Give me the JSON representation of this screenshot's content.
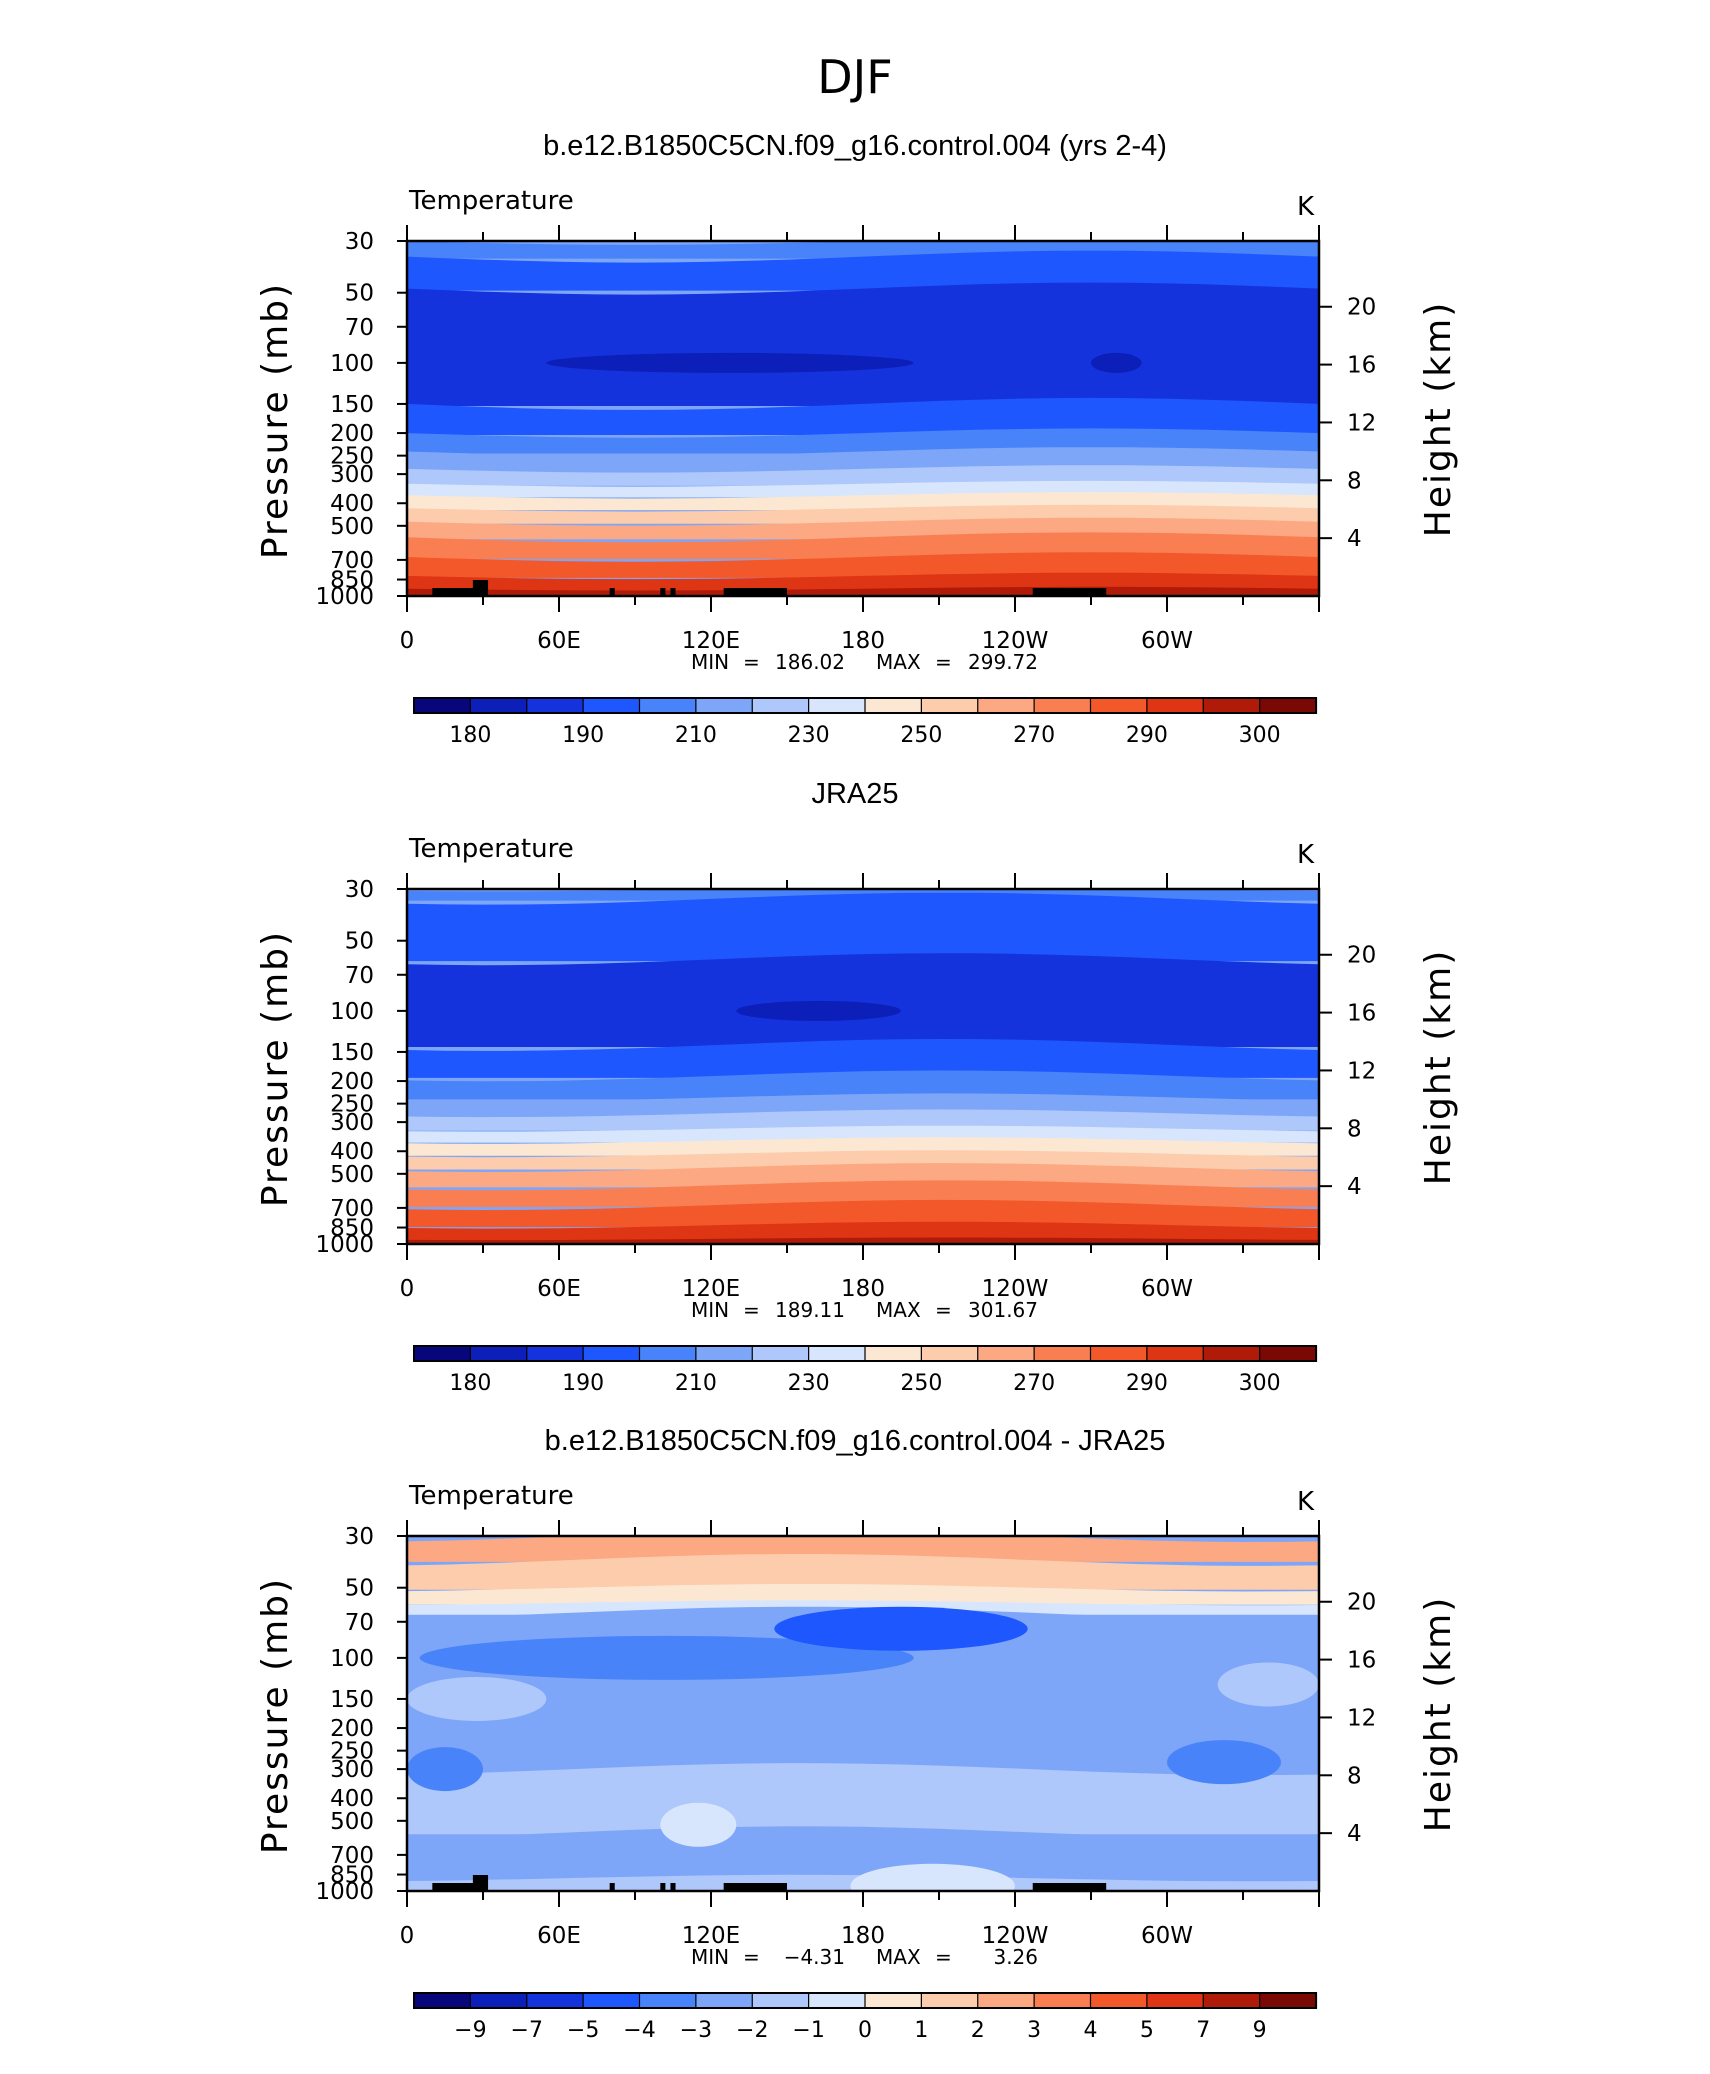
{
  "figure_title": "DJF",
  "colors": {
    "temperature": [
      "#08067b",
      "#0c1fb8",
      "#1433dd",
      "#1f57ff",
      "#4983f9",
      "#7ea6f8",
      "#afc8fb",
      "#d7e6fd",
      "#fce8d2",
      "#fcccac",
      "#fba883",
      "#f97f52",
      "#f2582a",
      "#de3515",
      "#b01a08",
      "#7a0805"
    ],
    "difference": [
      "#08067b",
      "#0c1fb8",
      "#1433dd",
      "#1f57ff",
      "#4983f9",
      "#7ea6f8",
      "#afc8fb",
      "#d7e6fd",
      "#fce8d2",
      "#fcccac",
      "#fba883",
      "#f97f52",
      "#f2582a",
      "#de3515",
      "#b01a08",
      "#7a0805"
    ]
  },
  "chart_data": [
    {
      "type": "heatmap",
      "title": "b.e12.B1850C5CN.f09_g16.control.004 (yrs 2-4)",
      "variable": "Temperature",
      "units": "K",
      "xlabel": "",
      "ylabel": "Pressure (mb)",
      "ylabel_right": "Height (km)",
      "x_ticks": [
        "0",
        "60E",
        "120E",
        "180",
        "120W",
        "60W"
      ],
      "y_ticks": [
        "30",
        "50",
        "70",
        "100",
        "150",
        "200",
        "250",
        "300",
        "400",
        "500",
        "700",
        "850",
        "1000"
      ],
      "y_ticks_right": [
        "20",
        "16",
        "12",
        "8",
        "4"
      ],
      "stats": {
        "min_label": "MIN",
        "min": "186.02",
        "max_label": "MAX",
        "max": "299.72"
      },
      "colorbar_labels": [
        "180",
        "190",
        "210",
        "230",
        "250",
        "270",
        "290",
        "300"
      ],
      "bands": [
        {
          "p_top": 30,
          "p_bot": 35,
          "color": 4
        },
        {
          "p_top": 35,
          "p_bot": 48,
          "color": 3
        },
        {
          "p_top": 48,
          "p_bot": 150,
          "color": 2
        },
        {
          "p_top": 150,
          "p_bot": 200,
          "color": 3
        },
        {
          "p_top": 200,
          "p_bot": 240,
          "color": 4
        },
        {
          "p_top": 240,
          "p_bot": 285,
          "color": 5
        },
        {
          "p_top": 285,
          "p_bot": 330,
          "color": 6
        },
        {
          "p_top": 330,
          "p_bot": 370,
          "color": 7
        },
        {
          "p_top": 370,
          "p_bot": 420,
          "color": 8
        },
        {
          "p_top": 420,
          "p_bot": 480,
          "color": 9
        },
        {
          "p_top": 480,
          "p_bot": 560,
          "color": 10
        },
        {
          "p_top": 560,
          "p_bot": 680,
          "color": 11
        },
        {
          "p_top": 680,
          "p_bot": 820,
          "color": 12
        },
        {
          "p_top": 820,
          "p_bot": 930,
          "color": 13
        },
        {
          "p_top": 930,
          "p_bot": 1000,
          "color": 14
        }
      ],
      "blobs": [
        {
          "lon": [
            55,
            200
          ],
          "p": 100,
          "color": 1
        },
        {
          "lon": [
            270,
            290
          ],
          "p": 100,
          "color": 1
        }
      ],
      "topography": true
    },
    {
      "type": "heatmap",
      "title": "JRA25",
      "variable": "Temperature",
      "units": "K",
      "xlabel": "",
      "ylabel": "Pressure (mb)",
      "ylabel_right": "Height (km)",
      "x_ticks": [
        "0",
        "60E",
        "120E",
        "180",
        "120W",
        "60W"
      ],
      "y_ticks": [
        "30",
        "50",
        "70",
        "100",
        "150",
        "200",
        "250",
        "300",
        "400",
        "500",
        "700",
        "850",
        "1000"
      ],
      "y_ticks_right": [
        "20",
        "16",
        "12",
        "8",
        "4"
      ],
      "stats": {
        "min_label": "MIN",
        "min": "189.11",
        "max_label": "MAX",
        "max": "301.67"
      },
      "colorbar_labels": [
        "180",
        "190",
        "210",
        "230",
        "250",
        "270",
        "290",
        "300"
      ],
      "bands": [
        {
          "p_top": 30,
          "p_bot": 33,
          "color": 4
        },
        {
          "p_top": 33,
          "p_bot": 60,
          "color": 3
        },
        {
          "p_top": 60,
          "p_bot": 140,
          "color": 2
        },
        {
          "p_top": 140,
          "p_bot": 190,
          "color": 3
        },
        {
          "p_top": 190,
          "p_bot": 235,
          "color": 4
        },
        {
          "p_top": 235,
          "p_bot": 275,
          "color": 5
        },
        {
          "p_top": 275,
          "p_bot": 320,
          "color": 6
        },
        {
          "p_top": 320,
          "p_bot": 360,
          "color": 7
        },
        {
          "p_top": 360,
          "p_bot": 410,
          "color": 8
        },
        {
          "p_top": 410,
          "p_bot": 470,
          "color": 9
        },
        {
          "p_top": 470,
          "p_bot": 560,
          "color": 10
        },
        {
          "p_top": 560,
          "p_bot": 680,
          "color": 11
        },
        {
          "p_top": 680,
          "p_bot": 830,
          "color": 12
        },
        {
          "p_top": 830,
          "p_bot": 950,
          "color": 13
        },
        {
          "p_top": 950,
          "p_bot": 1000,
          "color": 14
        }
      ],
      "blobs": [
        {
          "lon": [
            130,
            195
          ],
          "p": 100,
          "color": 1
        }
      ],
      "topography": false
    },
    {
      "type": "heatmap",
      "title": "b.e12.B1850C5CN.f09_g16.control.004 - JRA25",
      "variable": "Temperature",
      "units": "K",
      "xlabel": "",
      "ylabel": "Pressure (mb)",
      "ylabel_right": "Height (km)",
      "x_ticks": [
        "0",
        "60E",
        "120E",
        "180",
        "120W",
        "60W"
      ],
      "y_ticks": [
        "30",
        "50",
        "70",
        "100",
        "150",
        "200",
        "250",
        "300",
        "400",
        "500",
        "700",
        "850",
        "1000"
      ],
      "y_ticks_right": [
        "20",
        "16",
        "12",
        "8",
        "4"
      ],
      "stats": {
        "min_label": "MIN",
        "min": "−4.31",
        "max_label": "MAX",
        "max": "3.26"
      },
      "colorbar_labels": [
        "−9",
        "−7",
        "−5",
        "−4",
        "−3",
        "−2",
        "−1",
        "0",
        "1",
        "2",
        "3",
        "4",
        "5",
        "7",
        "9"
      ],
      "bands": [
        {
          "p_top": 30,
          "p_bot": 38,
          "color": 10
        },
        {
          "p_top": 38,
          "p_bot": 50,
          "color": 9
        },
        {
          "p_top": 50,
          "p_bot": 58,
          "color": 8
        },
        {
          "p_top": 58,
          "p_bot": 64,
          "color": 7
        },
        {
          "p_top": 64,
          "p_bot": 130,
          "color": 5
        },
        {
          "p_top": 130,
          "p_bot": 300,
          "color": 5
        },
        {
          "p_top": 300,
          "p_bot": 560,
          "color": 6
        },
        {
          "p_top": 560,
          "p_bot": 880,
          "color": 5
        },
        {
          "p_top": 880,
          "p_bot": 1000,
          "color": 6
        }
      ],
      "blobs": [
        {
          "lon": [
            5,
            200
          ],
          "p": 100,
          "color": 4
        },
        {
          "lon": [
            145,
            245
          ],
          "p": 75,
          "color": 3
        },
        {
          "lon": [
            0,
            30
          ],
          "p": 300,
          "color": 4
        },
        {
          "lon": [
            300,
            345
          ],
          "p": 280,
          "color": 4
        },
        {
          "lon": [
            0,
            55
          ],
          "p": 150,
          "color": 6
        },
        {
          "lon": [
            320,
            360
          ],
          "p": 130,
          "color": 6
        },
        {
          "lon": [
            100,
            130
          ],
          "p": 520,
          "color": 7
        },
        {
          "lon": [
            175,
            240
          ],
          "p": 950,
          "color": 7
        }
      ],
      "topography": true
    }
  ]
}
